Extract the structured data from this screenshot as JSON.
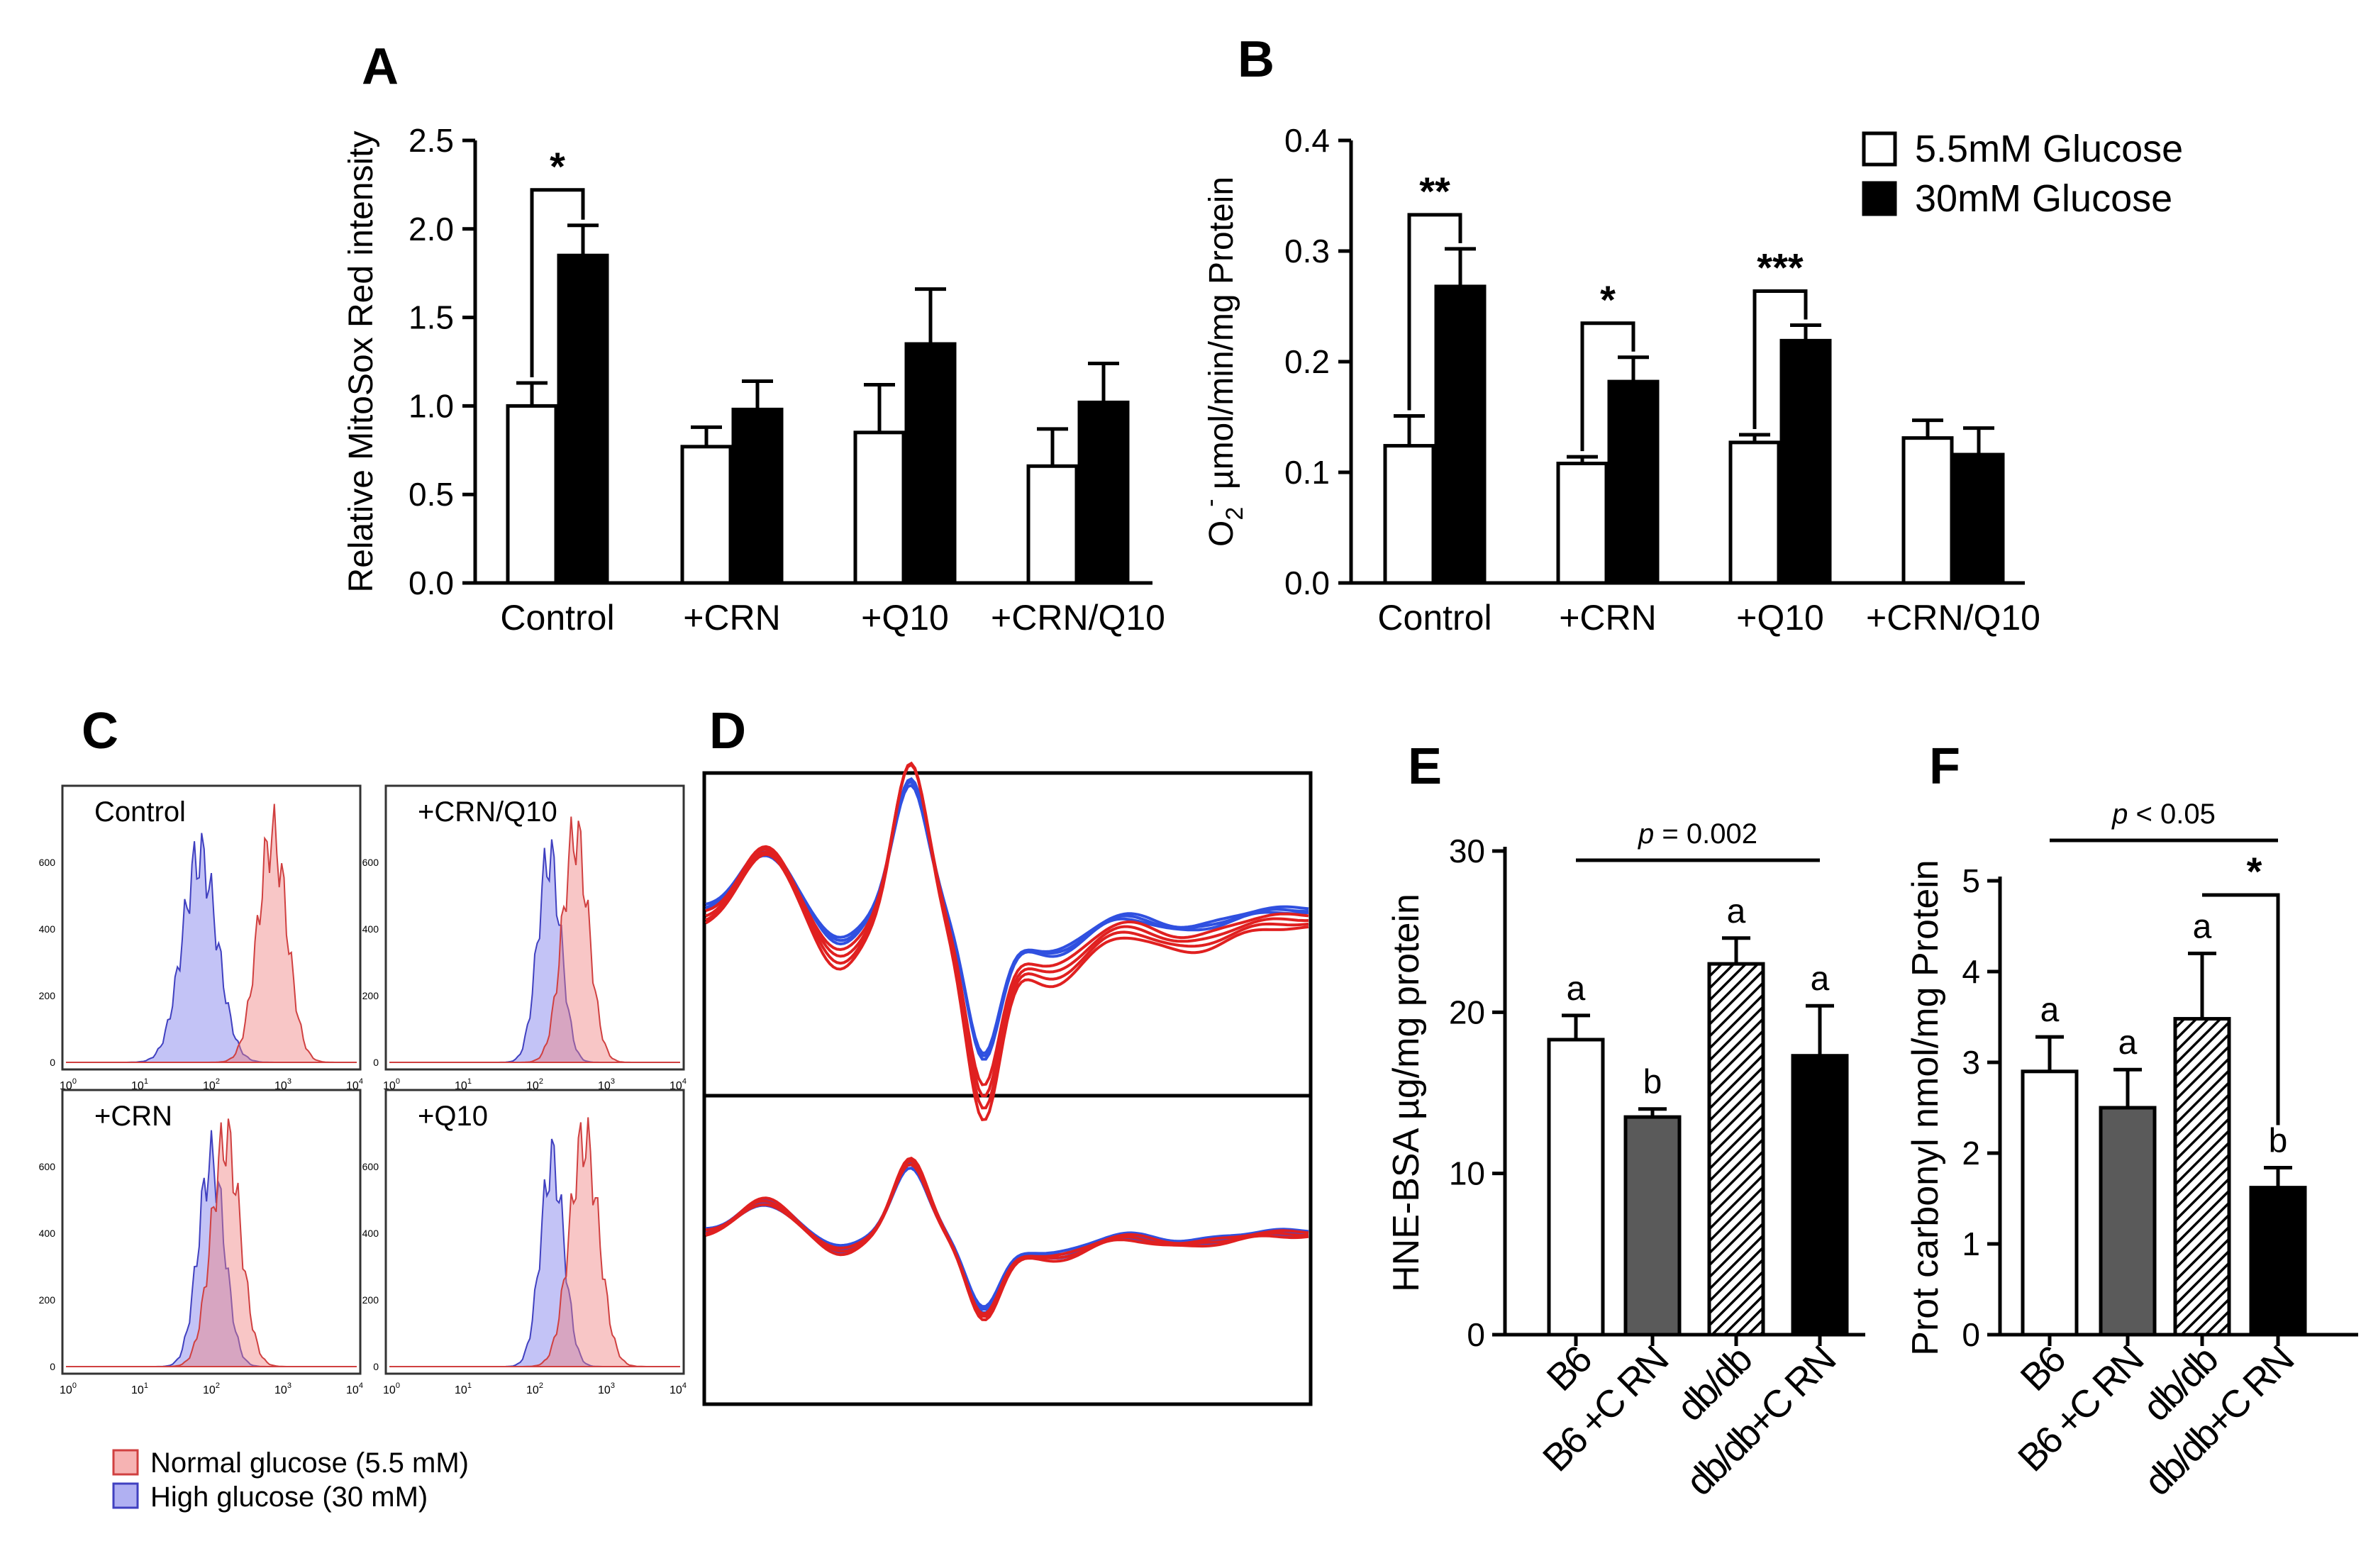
{
  "legend_top": {
    "items": [
      {
        "label": "5.5mM Glucose",
        "fill": "#ffffff"
      },
      {
        "label": "30mM Glucose",
        "fill": "#000000"
      }
    ]
  },
  "chart_data": [
    {
      "panel": "A",
      "type": "bar",
      "ylabel": "Relative MitoSox Red intensity",
      "ylim": [
        0,
        2.5
      ],
      "yticks": [
        "0.0",
        "0.5",
        "1.0",
        "1.5",
        "2.0",
        "2.5"
      ],
      "categories": [
        "Control",
        "+CRN",
        "+Q10",
        "+CRN/Q10"
      ],
      "series": [
        {
          "name": "5.5mM Glucose",
          "values": [
            1.0,
            0.77,
            0.85,
            0.66
          ],
          "errors": [
            0.13,
            0.11,
            0.27,
            0.21
          ],
          "fill": "#ffffff"
        },
        {
          "name": "30mM Glucose",
          "values": [
            1.85,
            0.98,
            1.35,
            1.02
          ],
          "errors": [
            0.17,
            0.16,
            0.31,
            0.22
          ],
          "fill": "#000000"
        }
      ],
      "significance": [
        {
          "group": 0,
          "label": "*"
        }
      ]
    },
    {
      "panel": "B",
      "type": "bar",
      "ylabel": "O2- µmol/min/mg Protein",
      "ylim": [
        0,
        0.4
      ],
      "yticks": [
        "0.0",
        "0.1",
        "0.2",
        "0.3",
        "0.4"
      ],
      "categories": [
        "Control",
        "+CRN",
        "+Q10",
        "+CRN/Q10"
      ],
      "series": [
        {
          "name": "5.5mM Glucose",
          "values": [
            0.124,
            0.108,
            0.127,
            0.131
          ],
          "errors": [
            0.027,
            0.006,
            0.007,
            0.016
          ],
          "fill": "#ffffff"
        },
        {
          "name": "30mM Glucose",
          "values": [
            0.268,
            0.182,
            0.219,
            0.116
          ],
          "errors": [
            0.034,
            0.022,
            0.014,
            0.024
          ],
          "fill": "#000000"
        }
      ],
      "significance": [
        {
          "group": 0,
          "label": "**"
        },
        {
          "group": 1,
          "label": "*"
        },
        {
          "group": 2,
          "label": "***"
        }
      ]
    },
    {
      "panel": "E",
      "type": "bar",
      "ylabel": "HNE-BSA µg/mg protein",
      "ylim": [
        0,
        30
      ],
      "yticks": [
        "0",
        "10",
        "20",
        "30"
      ],
      "categories": [
        "B6",
        "B6 +C RN",
        "db/db",
        "db/db+C RN"
      ],
      "values": [
        18.3,
        13.5,
        23.0,
        17.3
      ],
      "errors": [
        1.5,
        0.5,
        1.6,
        3.1
      ],
      "fills": [
        "#ffffff",
        "#5a5a5a",
        "hatch",
        "#000000"
      ],
      "letters": [
        "a",
        "b",
        "a",
        "a"
      ],
      "pvalue_prefix": "p",
      "pvalue_suffix": " = 0.002"
    },
    {
      "panel": "F",
      "type": "bar",
      "ylabel": "Prot carbonyl nmol/mg Protein",
      "ylim": [
        0,
        5
      ],
      "yticks": [
        "0",
        "1",
        "2",
        "3",
        "4",
        "5"
      ],
      "categories": [
        "B6",
        "B6 +C RN",
        "db/db",
        "db/db+C RN"
      ],
      "values": [
        2.9,
        2.5,
        3.48,
        1.62
      ],
      "errors": [
        0.38,
        0.42,
        0.72,
        0.22
      ],
      "fills": [
        "#ffffff",
        "#5a5a5a",
        "hatch",
        "#000000"
      ],
      "letters": [
        "a",
        "a",
        "a",
        "b"
      ],
      "pvalue_prefix": "p",
      "pvalue_suffix": " < 0.05",
      "star": "*"
    }
  ],
  "panel_c": {
    "subplots": [
      {
        "label": "Control"
      },
      {
        "label": "+CRN/Q10"
      },
      {
        "label": "+CRN"
      },
      {
        "label": "+Q10"
      }
    ],
    "yticks": [
      "0",
      "200",
      "400",
      "600"
    ],
    "xticks": [
      "10",
      "10",
      "10",
      "10",
      "10"
    ],
    "exps": [
      "0",
      "1",
      "2",
      "3",
      "4"
    ],
    "legend": [
      {
        "label": "Normal glucose (5.5 mM)",
        "color": "#f08080"
      },
      {
        "label": "High glucose (30 mM)",
        "color": "#7b7bea"
      }
    ]
  },
  "panel_labels": {
    "a": "A",
    "b": "B",
    "c": "C",
    "d": "D",
    "e": "E",
    "f": "F"
  }
}
